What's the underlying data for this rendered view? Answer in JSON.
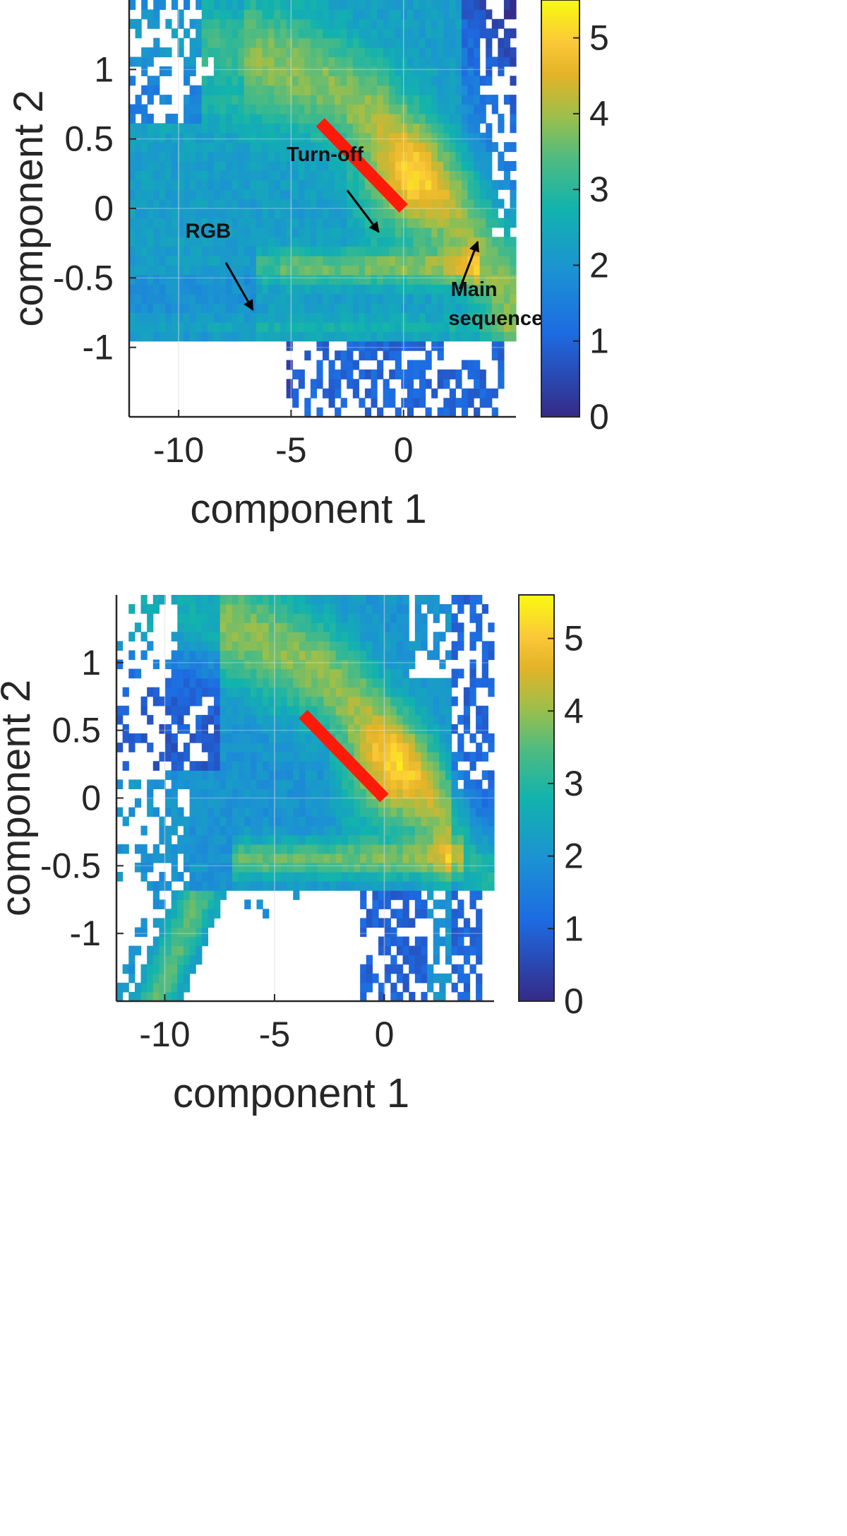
{
  "chart_data": [
    {
      "type": "heatmap",
      "xlabel": "component 1",
      "ylabel": "component 2",
      "xlim": [
        -12.2,
        5.0
      ],
      "ylim": [
        -1.5,
        1.5
      ],
      "xticks": [
        -10,
        -5,
        0
      ],
      "xtick_labels": [
        "-10",
        "-5",
        "0"
      ],
      "yticks": [
        -1,
        -0.5,
        0,
        0.5,
        1
      ],
      "ytick_labels": [
        "-1",
        "-0.5",
        "0",
        "0.5",
        "1"
      ],
      "grid": true,
      "colorbar": {
        "min": 0,
        "max": 5.5,
        "ticks": [
          0,
          1,
          2,
          3,
          4,
          5
        ],
        "tick_labels": [
          "0",
          "1",
          "2",
          "3",
          "4",
          "5"
        ],
        "colormap": "parula"
      },
      "density_ridges": [
        {
          "x": [
            -12,
            -8,
            -4,
            -1,
            0,
            1,
            2.5,
            4.5
          ],
          "y": [
            1.25,
            1.15,
            0.95,
            0.65,
            0.45,
            0.25,
            -0.1,
            -0.6
          ]
        },
        {
          "x": [
            -6,
            -4,
            -2,
            -0.5,
            1,
            3
          ],
          "y": [
            -0.5,
            -0.45,
            -0.35,
            -0.2,
            -0.25,
            -0.3
          ]
        },
        {
          "x": [
            -12,
            -6,
            0,
            4.5
          ],
          "y": [
            -0.85,
            -0.85,
            -0.82,
            -0.8
          ]
        }
      ],
      "red_line": {
        "x": [
          -3.7,
          0
        ],
        "y": [
          0.62,
          0
        ]
      },
      "annotations": [
        {
          "label": "Turn-off",
          "text_x": -5.2,
          "text_y": 0.34,
          "arrow_from": [
            -2.5,
            0.13
          ],
          "arrow_to": [
            -1.1,
            -0.17
          ]
        },
        {
          "label": "RGB",
          "text_x": -9.7,
          "text_y": -0.21,
          "arrow_from": [
            -7.9,
            -0.39
          ],
          "arrow_to": [
            -6.7,
            -0.73
          ]
        },
        {
          "label": "Main",
          "text_x": 2.1,
          "text_y": -0.63,
          "arrow_from": [
            2.5,
            -0.58
          ],
          "arrow_to": [
            3.3,
            -0.24
          ]
        },
        {
          "label": "sequence",
          "text_x": 2.0,
          "text_y": -0.84
        }
      ]
    },
    {
      "type": "heatmap",
      "xlabel": "component 1",
      "ylabel": "component 2",
      "xlim": [
        -12.2,
        5.0
      ],
      "ylim": [
        -1.5,
        1.5
      ],
      "xticks": [
        -10,
        -5,
        0
      ],
      "xtick_labels": [
        "-10",
        "-5",
        "0"
      ],
      "yticks": [
        -1,
        -0.5,
        0,
        0.5,
        1
      ],
      "ytick_labels": [
        "-1",
        "-0.5",
        "0",
        "0.5",
        "1"
      ],
      "grid": true,
      "colorbar": {
        "min": 0,
        "max": 5.6,
        "ticks": [
          0,
          1,
          2,
          3,
          4,
          5
        ],
        "tick_labels": [
          "0",
          "1",
          "2",
          "3",
          "4",
          "5"
        ],
        "colormap": "parula"
      },
      "density_ridges": [
        {
          "x": [
            -9,
            -6,
            -3,
            -1,
            0,
            1,
            2.5,
            4.5
          ],
          "y": [
            1.4,
            1.2,
            0.95,
            0.65,
            0.45,
            0.25,
            -0.1,
            -0.6
          ]
        },
        {
          "x": [
            -7,
            -5,
            -3,
            -1,
            0.5,
            3
          ],
          "y": [
            -0.6,
            -0.5,
            -0.42,
            -0.3,
            -0.3,
            -0.35
          ]
        },
        {
          "x": [
            -8.5,
            -9.2,
            -10,
            -10.5
          ],
          "y": [
            -0.75,
            -1.0,
            -1.25,
            -1.5
          ]
        }
      ],
      "red_line": {
        "x": [
          -3.7,
          0
        ],
        "y": [
          0.62,
          0
        ]
      }
    }
  ]
}
